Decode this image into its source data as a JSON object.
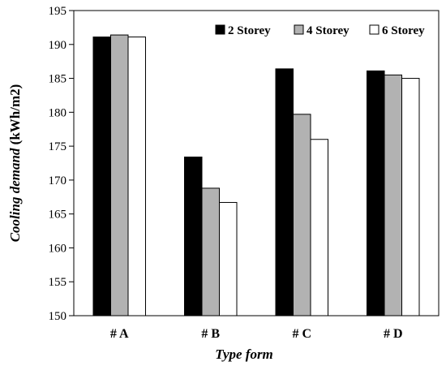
{
  "chart_data": {
    "type": "bar",
    "categories": [
      "# A",
      "# B",
      "# C",
      "# D"
    ],
    "series": [
      {
        "name": "2 Storey",
        "values": [
          191.1,
          173.4,
          186.4,
          186.1
        ],
        "color": "#000000"
      },
      {
        "name": "4 Storey",
        "values": [
          191.4,
          168.8,
          179.7,
          185.5
        ],
        "color": "#b2b2b2"
      },
      {
        "name": "6 Storey",
        "values": [
          191.1,
          166.7,
          176.0,
          185.0
        ],
        "color": "#ffffff"
      }
    ],
    "xlabel": "Type form",
    "ylabel_italic": "Cooling demand",
    "ylabel_unit": " (kWh/m2)",
    "ylim": [
      150,
      195
    ],
    "yticks": [
      150,
      155,
      160,
      165,
      170,
      175,
      180,
      185,
      190,
      195
    ],
    "grid": false,
    "legend_position": "top-right"
  }
}
